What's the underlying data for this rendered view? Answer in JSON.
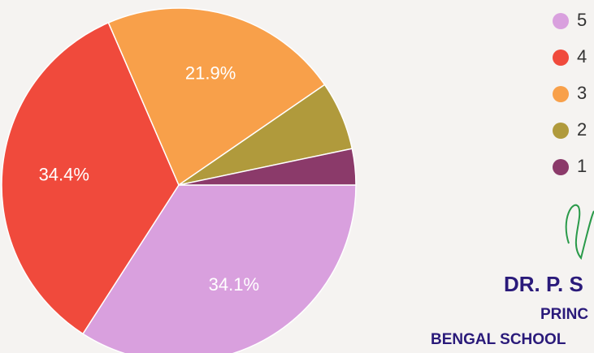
{
  "chart_data": {
    "type": "pie",
    "categories": [
      "5",
      "4",
      "3",
      "2",
      "1"
    ],
    "values": [
      34.1,
      34.4,
      21.9,
      6.3,
      3.3
    ],
    "value_labels": [
      "34.1%",
      "34.4%",
      "21.9%",
      null,
      null
    ],
    "colors": [
      "#d9a0de",
      "#f04a3c",
      "#f8a04a",
      "#b09a3c",
      "#8b3a6a"
    ]
  },
  "stamp": {
    "name": "DR. P. S",
    "role": "PRINC",
    "institution": "BENGAL SCHOOL"
  }
}
